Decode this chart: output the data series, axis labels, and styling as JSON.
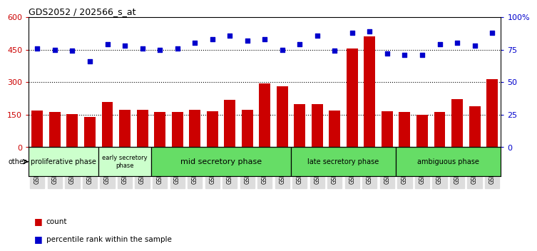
{
  "title": "GDS2052 / 202566_s_at",
  "samples": [
    "GSM109814",
    "GSM109815",
    "GSM109816",
    "GSM109817",
    "GSM109820",
    "GSM109821",
    "GSM109822",
    "GSM109824",
    "GSM109825",
    "GSM109826",
    "GSM109827",
    "GSM109828",
    "GSM109829",
    "GSM109830",
    "GSM109831",
    "GSM109834",
    "GSM109835",
    "GSM109836",
    "GSM109837",
    "GSM109838",
    "GSM109839",
    "GSM109818",
    "GSM109819",
    "GSM109823",
    "GSM109832",
    "GSM109833",
    "GSM109840"
  ],
  "counts": [
    168,
    162,
    152,
    140,
    210,
    172,
    172,
    162,
    162,
    172,
    165,
    218,
    172,
    295,
    282,
    200,
    200,
    168,
    455,
    510,
    165,
    162,
    148,
    162,
    222,
    188,
    315
  ],
  "percentiles": [
    76,
    75,
    74,
    66,
    79,
    78,
    76,
    75,
    76,
    80,
    83,
    86,
    82,
    83,
    75,
    79,
    86,
    74,
    88,
    89,
    72,
    71,
    71,
    79,
    80,
    78,
    88
  ],
  "bar_color": "#cc0000",
  "dot_color": "#0000cc",
  "ylim_left": [
    0,
    600
  ],
  "ylim_right": [
    0,
    100
  ],
  "yticks_left": [
    0,
    150,
    300,
    450,
    600
  ],
  "yticks_left_labels": [
    "0",
    "150",
    "300",
    "450",
    "600"
  ],
  "yticks_right": [
    0,
    25,
    50,
    75,
    100
  ],
  "yticks_right_labels": [
    "0",
    "25",
    "50",
    "75",
    "100%"
  ],
  "hlines": [
    150,
    300,
    450
  ],
  "phases": [
    {
      "label": "proliferative phase",
      "start": 0,
      "end": 4,
      "color": "#ccffcc"
    },
    {
      "label": "early secretory\nphase",
      "start": 4,
      "end": 7,
      "color": "#ccffcc"
    },
    {
      "label": "mid secretory phase",
      "start": 7,
      "end": 15,
      "color": "#66dd66"
    },
    {
      "label": "late secretory phase",
      "start": 15,
      "end": 21,
      "color": "#66dd66"
    },
    {
      "label": "ambiguous phase",
      "start": 21,
      "end": 27,
      "color": "#66dd66"
    }
  ],
  "phase_dividers": [
    4,
    7,
    15,
    21
  ],
  "other_label": "other",
  "legend_count": "count",
  "legend_pct": "percentile rank within the sample",
  "bg_color": "#ffffff",
  "tick_bg": "#dddddd"
}
